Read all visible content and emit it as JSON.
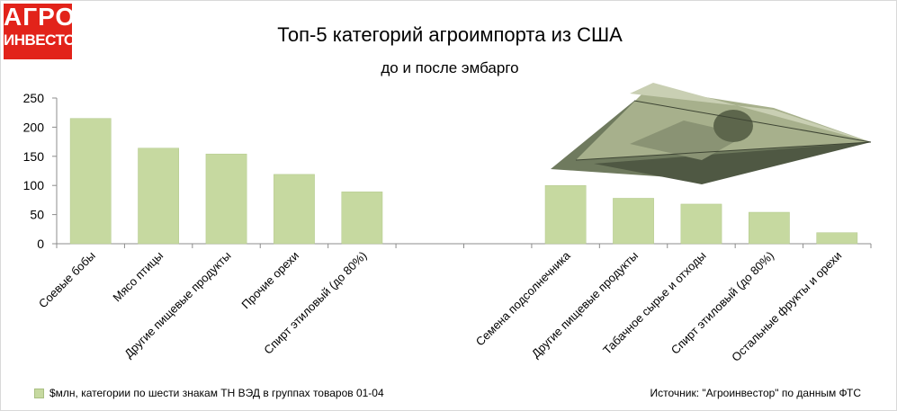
{
  "logo": {
    "line1": "АГРО",
    "line2": "ИНВЕСТОР"
  },
  "note": "$млн, категории по шести знакам ТН ВЭД в группах товаров 01-04",
  "source": "Источник: \"Агроинвестор\" по данным ФТС",
  "colors": {
    "bar": "#c6d9a0",
    "bar_stroke": "#b3c98c",
    "axis": "#8c8c8c",
    "logo": "#e2231a"
  },
  "decoration": {
    "dollar_plane": "paper-airplane-dollar-bill"
  },
  "chart_data": {
    "type": "bar",
    "title": "Топ-5 категорий агроимпорта из США",
    "subtitle": "до и после эмбарго",
    "ylim": [
      0,
      250
    ],
    "yticks": [
      "0",
      "50",
      "100",
      "150",
      "200",
      "250"
    ],
    "grid": false,
    "legend": "bottom-left",
    "categories": [
      "Соевые бобы",
      "Мясо птицы",
      "Другие пищевые продукты",
      "Прочие орехи",
      "Спирт этиловый (до 80%)",
      "",
      "",
      "Семена подсолнечника",
      "Другие пищевые продукты",
      "Табачное сырье и отходы",
      "Спирт этиловый (до 80%)",
      "Остальные фрукты и орехи"
    ],
    "values": [
      215,
      164,
      154,
      119,
      89,
      null,
      null,
      100,
      78,
      68,
      54,
      19
    ]
  }
}
